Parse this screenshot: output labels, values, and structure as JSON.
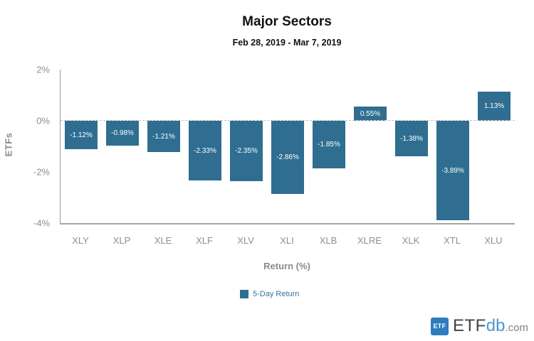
{
  "chart_data": {
    "type": "bar",
    "title": "Major Sectors",
    "subtitle": "Feb 28, 2019 - Mar 7, 2019",
    "xlabel": "Return (%)",
    "ylabel": "ETFs",
    "categories": [
      "XLY",
      "XLP",
      "XLE",
      "XLF",
      "XLV",
      "XLI",
      "XLB",
      "XLRE",
      "XLK",
      "XTL",
      "XLU"
    ],
    "series": [
      {
        "name": "5-Day Return",
        "values": [
          -1.12,
          -0.98,
          -1.21,
          -2.33,
          -2.35,
          -2.86,
          -1.85,
          0.55,
          -1.38,
          -3.89,
          1.13
        ]
      }
    ],
    "value_labels": [
      "-1.12%",
      "-0.98%",
      "-1.21%",
      "-2.33%",
      "-2.35%",
      "-2.86%",
      "-1.85%",
      "0.55%",
      "-1.38%",
      "-3.89%",
      "1.13%"
    ],
    "ylim": [
      -4,
      2
    ],
    "yticks": [
      {
        "label": "2%",
        "value": 2
      },
      {
        "label": "0%",
        "value": 0
      },
      {
        "label": "-2%",
        "value": -2
      },
      {
        "label": "-4%",
        "value": -4
      }
    ],
    "legend": {
      "label": "5-Day Return",
      "position": "bottom-center"
    },
    "zero_line": "dashed",
    "grid": false
  },
  "colors": {
    "bar": "#2f6e91",
    "bar_label": "#ffffff",
    "axis": "#9b9b9b",
    "tick_label": "#8e8e8e",
    "axis_title": "#8a8a8a",
    "legend_swatch": "#2f6e91",
    "legend_text": "#36739b",
    "logo_badge_bg": "#2e7cc0",
    "logo_etf_text": "#3d4449",
    "logo_db_text": "#4b97d2",
    "logo_com_text": "#808285"
  },
  "footer": {
    "badge": "ETF",
    "brand_etf": "ETF",
    "brand_db": "db",
    "brand_com": ".com"
  }
}
